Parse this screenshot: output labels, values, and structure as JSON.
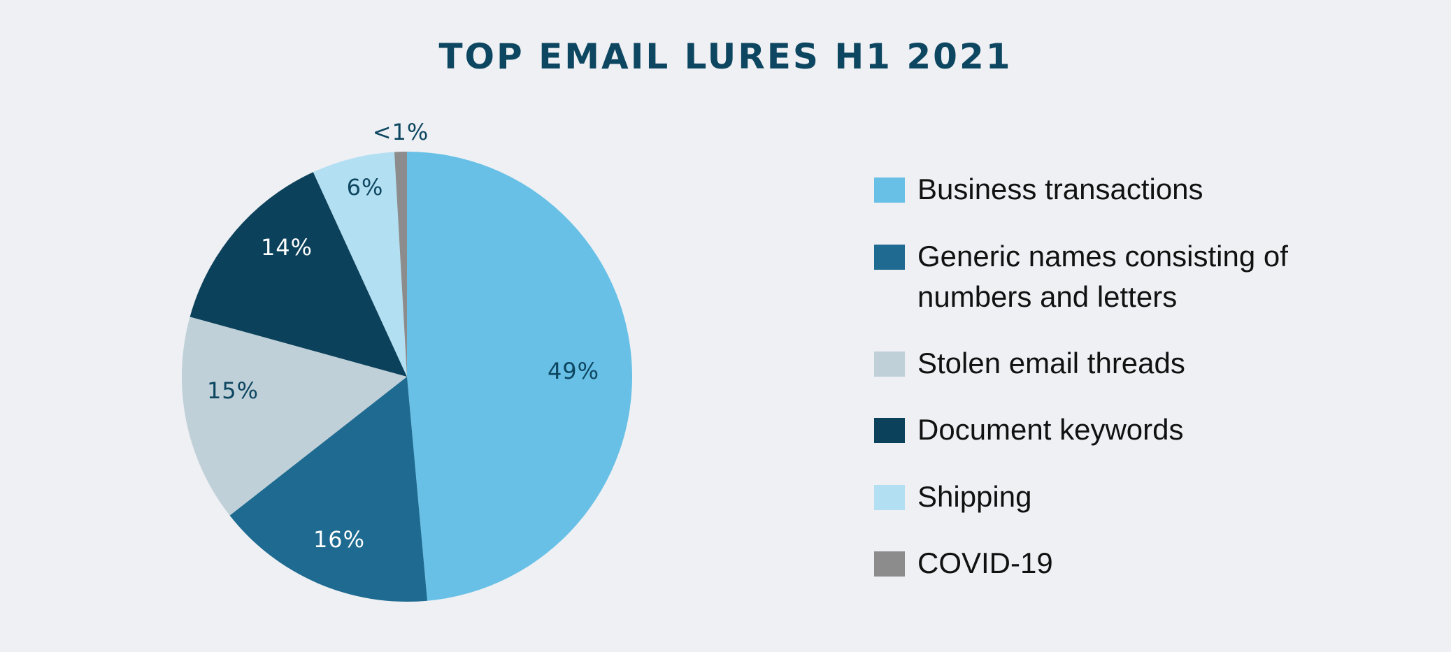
{
  "title": "TOP EMAIL LURES H1 2021",
  "chart_data": {
    "type": "pie",
    "title": "TOP EMAIL LURES H1 2021",
    "start_angle": "12 o'clock, clockwise",
    "categories": [
      "Business transactions",
      "Generic names consisting of numbers and letters",
      "Stolen email threads",
      "Document keywords",
      "Shipping",
      "COVID-19"
    ],
    "values": [
      49,
      16,
      15,
      14,
      6,
      0.9
    ],
    "labels": [
      "49%",
      "16%",
      "15%",
      "14%",
      "6%",
      "<1%"
    ],
    "colors": [
      "#68c0e6",
      "#1e6a90",
      "#bfd0d8",
      "#0c415b",
      "#b3dff2",
      "#8c8c8c"
    ],
    "legend_position": "right"
  },
  "slices": [
    {
      "label": "49%"
    },
    {
      "label": "16%"
    },
    {
      "label": "15%"
    },
    {
      "label": "14%"
    },
    {
      "label": "6%"
    },
    {
      "label": "<1%"
    }
  ],
  "legend": [
    {
      "label": "Business transactions",
      "color": "#68c0e6"
    },
    {
      "label": "Generic names consisting of numbers and letters",
      "color": "#1e6a90"
    },
    {
      "label": "Stolen email threads",
      "color": "#bfd0d8"
    },
    {
      "label": "Document keywords",
      "color": "#0c415b"
    },
    {
      "label": "Shipping",
      "color": "#b3dff2"
    },
    {
      "label": "COVID-19",
      "color": "#8c8c8c"
    }
  ]
}
